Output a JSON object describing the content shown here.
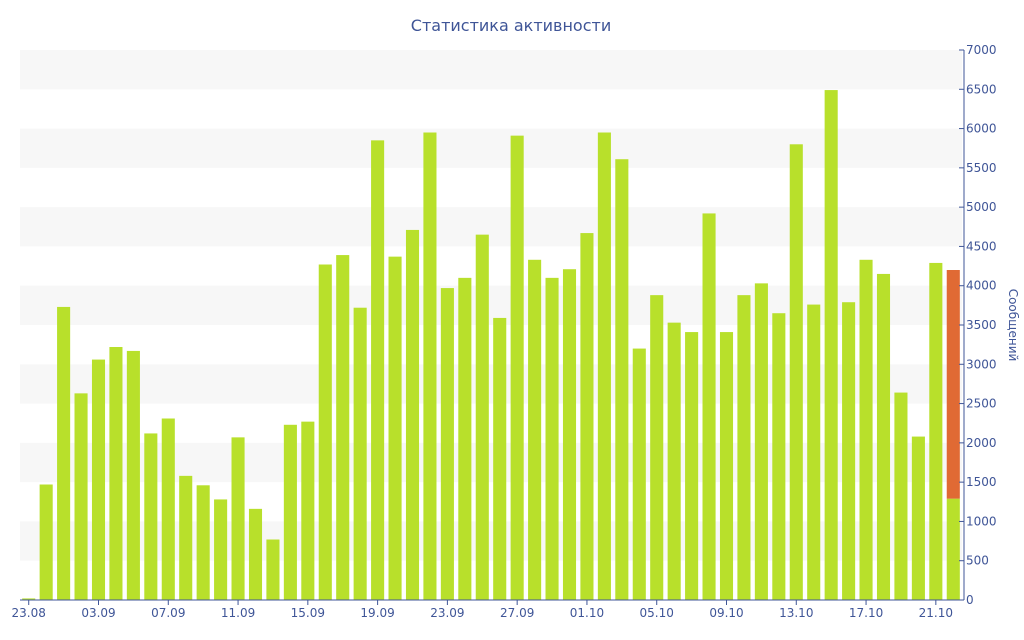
{
  "chart_data": {
    "type": "bar",
    "title": "Статистика активности",
    "ylabel": "Сообщений",
    "xlabel": "",
    "ylim": [
      0,
      7000
    ],
    "yticks": [
      0,
      500,
      1000,
      1500,
      2000,
      2500,
      3000,
      3500,
      4000,
      4500,
      5000,
      5500,
      6000,
      6500,
      7000
    ],
    "xtick_labels": [
      "23.08",
      "03.09",
      "07.09",
      "11.09",
      "15.09",
      "19.09",
      "23.09",
      "27.09",
      "01.10",
      "05.10",
      "09.10",
      "13.10",
      "17.10",
      "21.10"
    ],
    "xtick_indices": [
      0,
      4,
      8,
      12,
      16,
      20,
      24,
      28,
      32,
      36,
      40,
      44,
      48,
      52
    ],
    "y_axis_position": "right",
    "grid": "horizontal alternating bands",
    "legend": "none",
    "series": [
      {
        "color": "#b8e02b",
        "values": [
          20,
          1470,
          3730,
          2630,
          3060,
          3220,
          3170,
          2120,
          2310,
          1580,
          1460,
          1280,
          2070,
          1160,
          770,
          2230,
          2270,
          4270,
          4390,
          3720,
          5850,
          4370,
          4710,
          5950,
          3970,
          4100,
          4650,
          3590,
          5910,
          4330,
          4100,
          4210,
          4670,
          5950,
          5610,
          3200,
          3880,
          3530,
          3410,
          4920,
          3410,
          3880,
          4030,
          3650,
          5800,
          3760,
          6490,
          3790,
          4330,
          4150,
          2640,
          2080,
          4290,
          1290
        ]
      },
      {
        "color": "#e06a34",
        "stacked_on_last_bar": true,
        "values": [
          0,
          0,
          0,
          0,
          0,
          0,
          0,
          0,
          0,
          0,
          0,
          0,
          0,
          0,
          0,
          0,
          0,
          0,
          0,
          0,
          0,
          0,
          0,
          0,
          0,
          0,
          0,
          0,
          0,
          0,
          0,
          0,
          0,
          0,
          0,
          0,
          0,
          0,
          0,
          0,
          0,
          0,
          0,
          0,
          0,
          0,
          0,
          0,
          0,
          0,
          0,
          0,
          0,
          2910
        ]
      }
    ],
    "colors": {
      "title": "#3f5597",
      "axis": "#3f5597",
      "band": "#f7f7f7",
      "bar": "#b8e02b",
      "highlight": "#e06a34"
    }
  }
}
